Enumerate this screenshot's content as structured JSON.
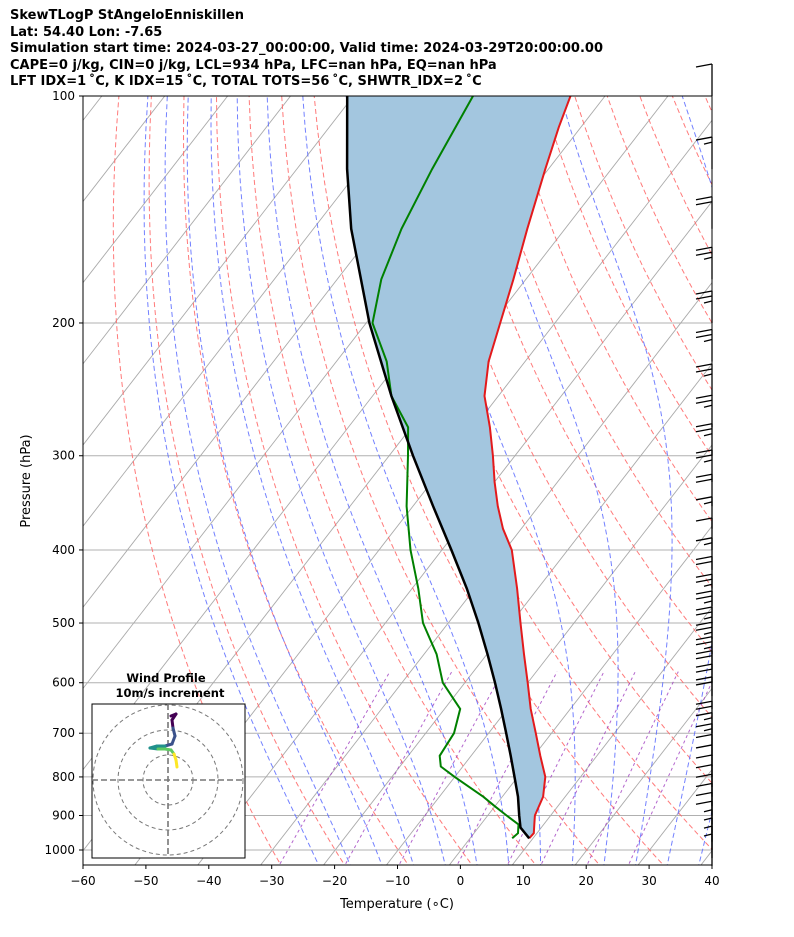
{
  "header": {
    "line1": "SkewTLogP StAngeloEnniskillen",
    "line2": "Lat: 54.40   Lon: -7.65",
    "line3": "Simulation start time: 2024-03-27_00:00:00, Valid time: 2024-03-29T20:00:00.00",
    "line4": "CAPE=0 j/kg, CIN=0 j/kg, LCL=934 hPa, LFC=nan hPa, EQ=nan hPa",
    "line5": "LFT IDX=1 ˚C, K IDX=15 ˚C, TOTAL TOTS=56 ˚C, SHWTR_IDX=2 ˚C"
  },
  "chart_data": {
    "type": "skewt",
    "xlabel": "Temperature ($^\\circ$C)",
    "ylabel": "Pressure (hPa)",
    "xlim": [
      -60,
      40
    ],
    "ylim": [
      1050,
      100
    ],
    "yscale": "log",
    "x_ticks": [
      -60,
      -50,
      -40,
      -30,
      -20,
      -10,
      0,
      10,
      20,
      30,
      40
    ],
    "x_tick_labels": [
      "−60",
      "−50",
      "−40",
      "−30",
      "−20",
      "−10",
      "0",
      "10",
      "20",
      "30",
      "40"
    ],
    "y_ticks": [
      100,
      200,
      300,
      400,
      500,
      600,
      700,
      800,
      900,
      1000
    ],
    "y_tick_labels": [
      "100",
      "200",
      "300",
      "400",
      "500",
      "600",
      "700",
      "800",
      "900",
      "1000"
    ],
    "grid": true,
    "temperature": {
      "color": "#e31a1c",
      "pressure": [
        965,
        950,
        925,
        900,
        850,
        800,
        750,
        700,
        650,
        600,
        550,
        500,
        450,
        400,
        375,
        350,
        325,
        300,
        275,
        250,
        225,
        200,
        175,
        150,
        125,
        110,
        100
      ],
      "values": [
        9.4,
        9.5,
        8.5,
        7.5,
        6.5,
        4.4,
        1.0,
        -2.5,
        -6.3,
        -10.0,
        -14.1,
        -18.5,
        -23.3,
        -28.9,
        -32.9,
        -36.5,
        -40.0,
        -43.5,
        -47.5,
        -52.2,
        -55.8,
        -58.7,
        -62.0,
        -66.0,
        -70.5,
        -73.5,
        -75.5
      ]
    },
    "dewpoint": {
      "color": "#008000",
      "pressure": [
        965,
        950,
        925,
        900,
        875,
        850,
        800,
        775,
        750,
        700,
        650,
        600,
        550,
        500,
        450,
        400,
        350,
        300,
        275,
        250,
        225,
        200,
        175,
        150,
        125,
        100
      ],
      "values": [
        6.7,
        7.0,
        6.0,
        3.0,
        0.0,
        -3.0,
        -10.0,
        -13.5,
        -15.0,
        -15.5,
        -17.5,
        -23.5,
        -28.0,
        -34.0,
        -39.0,
        -45.0,
        -51.0,
        -57.0,
        -60.5,
        -67.0,
        -72.0,
        -79.0,
        -83.0,
        -86.0,
        -88.5,
        -91.0
      ]
    },
    "parcel_profile": {
      "color": "#000000",
      "pressure": [
        965,
        934,
        900,
        850,
        800,
        750,
        700,
        650,
        600,
        550,
        500,
        450,
        400,
        350,
        300,
        250,
        200,
        150,
        125,
        100
      ],
      "values": [
        9.4,
        6.7,
        5.0,
        2.5,
        -0.5,
        -3.7,
        -7.2,
        -11.0,
        -15.2,
        -19.9,
        -25.2,
        -31.3,
        -38.5,
        -46.8,
        -56.2,
        -67.0,
        -79.5,
        -94.0,
        -102.0,
        -111.0
      ]
    },
    "shading": {
      "color": "#a3c6df",
      "between": "temperature and parcel profile"
    },
    "reference_lines": {
      "isotherms": {
        "color": "#aaaaaa"
      },
      "dry_adiabats": {
        "color": "#ff6b6b"
      },
      "moist_adiabats": {
        "color": "#5b6bff"
      },
      "mixing_ratio": {
        "color": "#a040c0"
      }
    },
    "wind_barbs": {
      "color": "#000000",
      "pressure": [
        100,
        125,
        150,
        175,
        200,
        225,
        250,
        275,
        300,
        325,
        350,
        375,
        400,
        425,
        450,
        475,
        500,
        525,
        550,
        575,
        600,
        625,
        650,
        700,
        725,
        750,
        775,
        800,
        825,
        850,
        875,
        900,
        925,
        950,
        975,
        1000,
        1025,
        1050
      ],
      "speed_kt": [
        10,
        15,
        20,
        25,
        25,
        25,
        25,
        25,
        25,
        25,
        20,
        15,
        10,
        15,
        20,
        25,
        25,
        25,
        25,
        25,
        20,
        20,
        20,
        20,
        15,
        15,
        10,
        10,
        10,
        10,
        10,
        10,
        10,
        10,
        5,
        5,
        5,
        5
      ]
    },
    "inset": {
      "title_line1": "Wind Profile",
      "title_line2": "10m/s increment",
      "rings": 3,
      "hodograph_colors": [
        "#440154",
        "#3b528b",
        "#21918c",
        "#5ec962",
        "#fde725"
      ]
    }
  }
}
